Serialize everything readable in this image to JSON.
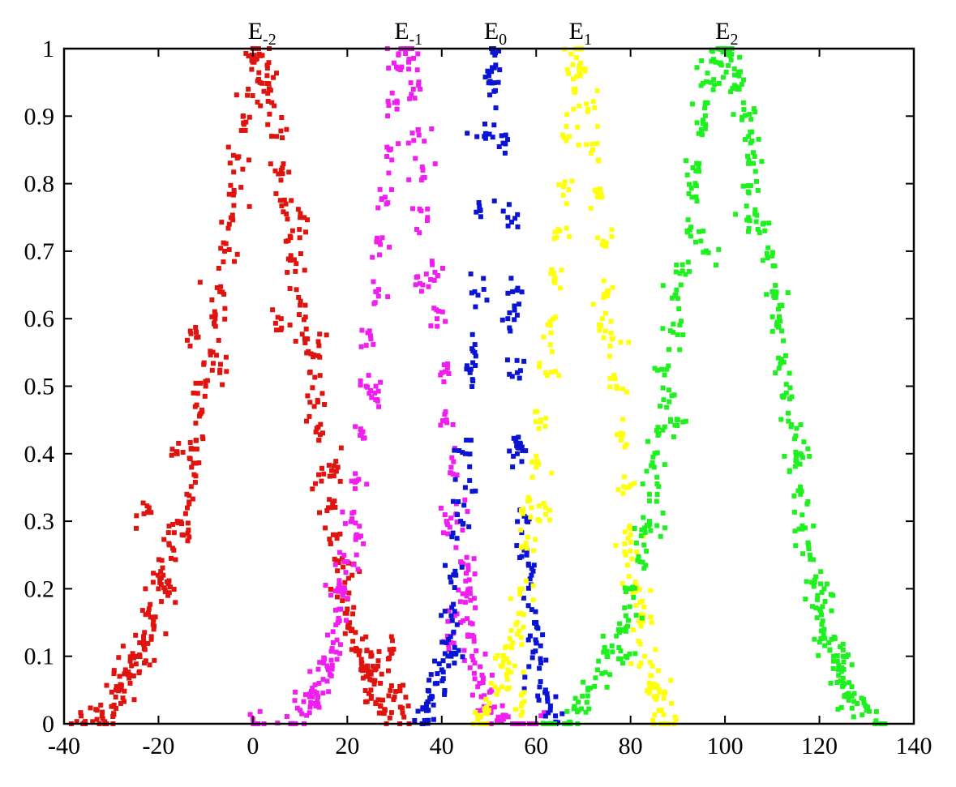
{
  "chart_data": {
    "type": "scatter",
    "title": "",
    "xlabel": "",
    "ylabel": "",
    "xlim": [
      -40,
      140
    ],
    "ylim": [
      0,
      1
    ],
    "x_ticks": [
      -40,
      -20,
      0,
      20,
      40,
      60,
      80,
      100,
      120,
      140
    ],
    "x_tick_labels": [
      "-40",
      "-20",
      "0",
      "20",
      "40",
      "60",
      "80",
      "100",
      "120",
      "140"
    ],
    "y_ticks": [
      0,
      0.1,
      0.2,
      0.3,
      0.4,
      0.5,
      0.6,
      0.7,
      0.8,
      0.9,
      1
    ],
    "y_tick_labels": [
      "0",
      "0.1",
      "0.2",
      "0.3",
      "0.4",
      "0.5",
      "0.6",
      "0.7",
      "0.8",
      "0.9",
      "1"
    ],
    "grid": false,
    "legend": "none",
    "series": [
      {
        "label_base": "E",
        "label_sub": "-2",
        "color": "#e0140f",
        "peak_x": 1,
        "peak_y": 1,
        "points": [
          [
            -36,
            0.0
          ],
          [
            -33,
            0.02
          ],
          [
            -31,
            0.0
          ],
          [
            -29,
            0.05
          ],
          [
            -28,
            0.03
          ],
          [
            -27,
            0.08
          ],
          [
            -26,
            0.06
          ],
          [
            -25,
            0.1
          ],
          [
            -24,
            0.12
          ],
          [
            -23,
            0.09
          ],
          [
            -22,
            0.17
          ],
          [
            -21,
            0.14
          ],
          [
            -20,
            0.2
          ],
          [
            -19,
            0.22
          ],
          [
            -18,
            0.19
          ],
          [
            -17,
            0.26
          ],
          [
            -16,
            0.3
          ],
          [
            -15,
            0.28
          ],
          [
            -14,
            0.34
          ],
          [
            -13,
            0.38
          ],
          [
            -12,
            0.42
          ],
          [
            -11,
            0.46
          ],
          [
            -10,
            0.5
          ],
          [
            -9,
            0.55
          ],
          [
            -8,
            0.6
          ],
          [
            -7,
            0.64
          ],
          [
            -6,
            0.7
          ],
          [
            -5,
            0.74
          ],
          [
            -4,
            0.79
          ],
          [
            -3,
            0.84
          ],
          [
            -2,
            0.89
          ],
          [
            -1,
            0.94
          ],
          [
            0,
            0.98
          ],
          [
            1,
            1.0
          ],
          [
            2,
            0.99
          ],
          [
            3,
            0.96
          ],
          [
            4,
            0.92
          ],
          [
            5,
            0.87
          ],
          [
            6,
            0.82
          ],
          [
            7,
            0.77
          ],
          [
            8,
            0.72
          ],
          [
            9,
            0.67
          ],
          [
            10,
            0.62
          ],
          [
            11,
            0.57
          ],
          [
            12,
            0.52
          ],
          [
            13,
            0.47
          ],
          [
            14,
            0.42
          ],
          [
            15,
            0.37
          ],
          [
            16,
            0.32
          ],
          [
            17,
            0.28
          ],
          [
            18,
            0.24
          ],
          [
            19,
            0.2
          ],
          [
            20,
            0.17
          ],
          [
            21,
            0.14
          ],
          [
            22,
            0.11
          ],
          [
            23,
            0.09
          ],
          [
            24,
            0.07
          ],
          [
            25,
            0.05
          ],
          [
            26,
            0.03
          ],
          [
            27,
            0.06
          ],
          [
            28,
            0.02
          ],
          [
            30,
            0.04
          ],
          [
            32,
            0.01
          ],
          [
            -22,
            0.32
          ],
          [
            -16,
            0.4
          ],
          [
            -12,
            0.58
          ],
          [
            -7,
            0.52
          ],
          [
            6,
            0.6
          ],
          [
            10,
            0.75
          ],
          [
            14,
            0.56
          ],
          [
            18,
            0.38
          ],
          [
            21,
            0.22
          ],
          [
            25,
            0.1
          ],
          [
            29,
            0.11
          ]
        ]
      },
      {
        "label_base": "E",
        "label_sub": "-1",
        "color": "#f01ff0",
        "peak_x": 32,
        "peak_y": 1,
        "points": [
          [
            1,
            0.0
          ],
          [
            8,
            0.0
          ],
          [
            10,
            0.02
          ],
          [
            12,
            0.04
          ],
          [
            13,
            0.03
          ],
          [
            14,
            0.06
          ],
          [
            15,
            0.09
          ],
          [
            16,
            0.08
          ],
          [
            17,
            0.12
          ],
          [
            18,
            0.15
          ],
          [
            19,
            0.19
          ],
          [
            20,
            0.24
          ],
          [
            21,
            0.3
          ],
          [
            22,
            0.36
          ],
          [
            23,
            0.43
          ],
          [
            24,
            0.5
          ],
          [
            25,
            0.57
          ],
          [
            26,
            0.64
          ],
          [
            27,
            0.71
          ],
          [
            28,
            0.78
          ],
          [
            29,
            0.85
          ],
          [
            30,
            0.92
          ],
          [
            31,
            0.97
          ],
          [
            32,
            1.0
          ],
          [
            33,
            0.98
          ],
          [
            34,
            0.94
          ],
          [
            35,
            0.88
          ],
          [
            36,
            0.82
          ],
          [
            37,
            0.75
          ],
          [
            38,
            0.68
          ],
          [
            39,
            0.6
          ],
          [
            40,
            0.52
          ],
          [
            41,
            0.45
          ],
          [
            42,
            0.38
          ],
          [
            43,
            0.31
          ],
          [
            44,
            0.24
          ],
          [
            45,
            0.18
          ],
          [
            46,
            0.13
          ],
          [
            47,
            0.09
          ],
          [
            48,
            0.06
          ],
          [
            49,
            0.04
          ],
          [
            50,
            0.02
          ],
          [
            52,
            0.01
          ],
          [
            55,
            0.0
          ],
          [
            60,
            0.0
          ],
          [
            18,
            0.2
          ],
          [
            22,
            0.28
          ],
          [
            26,
            0.48
          ],
          [
            36,
            0.65
          ],
          [
            41,
            0.3
          ],
          [
            44,
            0.15
          ],
          [
            46,
            0.2
          ],
          [
            42,
            0.12
          ]
        ]
      },
      {
        "label_base": "E",
        "label_sub": "0",
        "color": "#0a14d2",
        "peak_x": 51,
        "peak_y": 1,
        "points": [
          [
            36,
            0.0
          ],
          [
            37,
            0.02
          ],
          [
            38,
            0.04
          ],
          [
            39,
            0.06
          ],
          [
            40,
            0.08
          ],
          [
            41,
            0.12
          ],
          [
            42,
            0.16
          ],
          [
            43,
            0.22
          ],
          [
            44,
            0.3
          ],
          [
            45,
            0.4
          ],
          [
            46,
            0.52
          ],
          [
            47,
            0.64
          ],
          [
            48,
            0.76
          ],
          [
            49,
            0.87
          ],
          [
            50,
            0.96
          ],
          [
            51,
            1.0
          ],
          [
            52,
            0.95
          ],
          [
            53,
            0.86
          ],
          [
            54,
            0.75
          ],
          [
            55,
            0.64
          ],
          [
            56,
            0.52
          ],
          [
            57,
            0.41
          ],
          [
            58,
            0.3
          ],
          [
            59,
            0.22
          ],
          [
            60,
            0.15
          ],
          [
            61,
            0.09
          ],
          [
            62,
            0.05
          ],
          [
            63,
            0.02
          ],
          [
            64,
            0.0
          ],
          [
            45,
            0.35
          ],
          [
            47,
            0.55
          ],
          [
            54,
            0.6
          ],
          [
            56,
            0.4
          ],
          [
            58,
            0.25
          ],
          [
            60,
            0.12
          ],
          [
            42,
            0.1
          ]
        ]
      },
      {
        "label_base": "E",
        "label_sub": "1",
        "color": "#ffff0a",
        "peak_x": 69,
        "peak_y": 1,
        "points": [
          [
            48,
            0.0
          ],
          [
            50,
            0.02
          ],
          [
            52,
            0.05
          ],
          [
            54,
            0.08
          ],
          [
            55,
            0.12
          ],
          [
            56,
            0.15
          ],
          [
            57,
            0.2
          ],
          [
            58,
            0.26
          ],
          [
            59,
            0.32
          ],
          [
            60,
            0.38
          ],
          [
            61,
            0.45
          ],
          [
            62,
            0.52
          ],
          [
            63,
            0.59
          ],
          [
            64,
            0.66
          ],
          [
            65,
            0.73
          ],
          [
            66,
            0.8
          ],
          [
            67,
            0.87
          ],
          [
            68,
            0.94
          ],
          [
            69,
            1.0
          ],
          [
            70,
            0.97
          ],
          [
            71,
            0.91
          ],
          [
            72,
            0.85
          ],
          [
            73,
            0.78
          ],
          [
            74,
            0.71
          ],
          [
            75,
            0.64
          ],
          [
            76,
            0.57
          ],
          [
            77,
            0.5
          ],
          [
            78,
            0.42
          ],
          [
            79,
            0.35
          ],
          [
            80,
            0.28
          ],
          [
            81,
            0.21
          ],
          [
            82,
            0.15
          ],
          [
            83,
            0.1
          ],
          [
            84,
            0.06
          ],
          [
            85,
            0.04
          ],
          [
            86,
            0.02
          ],
          [
            88,
            0.0
          ],
          [
            53,
            0.1
          ],
          [
            57,
            0.03
          ],
          [
            62,
            0.32
          ],
          [
            74,
            0.6
          ],
          [
            79,
            0.25
          ],
          [
            82,
            0.18
          ],
          [
            86,
            0.05
          ]
        ]
      },
      {
        "label_base": "E",
        "label_sub": "2",
        "color": "#1ff01f",
        "peak_x": 100,
        "peak_y": 1,
        "points": [
          [
            63,
            0.0
          ],
          [
            67,
            0.0
          ],
          [
            69,
            0.02
          ],
          [
            71,
            0.05
          ],
          [
            73,
            0.08
          ],
          [
            75,
            0.1
          ],
          [
            77,
            0.13
          ],
          [
            79,
            0.16
          ],
          [
            80,
            0.2
          ],
          [
            82,
            0.24
          ],
          [
            83,
            0.29
          ],
          [
            84,
            0.34
          ],
          [
            85,
            0.38
          ],
          [
            86,
            0.43
          ],
          [
            87,
            0.48
          ],
          [
            88,
            0.53
          ],
          [
            89,
            0.58
          ],
          [
            90,
            0.63
          ],
          [
            91,
            0.68
          ],
          [
            92,
            0.73
          ],
          [
            93,
            0.78
          ],
          [
            94,
            0.83
          ],
          [
            95,
            0.88
          ],
          [
            96,
            0.92
          ],
          [
            97,
            0.95
          ],
          [
            98,
            0.98
          ],
          [
            99,
            1.0
          ],
          [
            100,
            1.0
          ],
          [
            101,
            0.99
          ],
          [
            102,
            0.97
          ],
          [
            103,
            0.94
          ],
          [
            104,
            0.91
          ],
          [
            105,
            0.87
          ],
          [
            106,
            0.83
          ],
          [
            107,
            0.79
          ],
          [
            108,
            0.74
          ],
          [
            109,
            0.69
          ],
          [
            110,
            0.64
          ],
          [
            111,
            0.59
          ],
          [
            112,
            0.54
          ],
          [
            113,
            0.49
          ],
          [
            114,
            0.44
          ],
          [
            115,
            0.39
          ],
          [
            116,
            0.34
          ],
          [
            117,
            0.29
          ],
          [
            118,
            0.25
          ],
          [
            119,
            0.21
          ],
          [
            120,
            0.17
          ],
          [
            121,
            0.14
          ],
          [
            122,
            0.12
          ],
          [
            123,
            0.1
          ],
          [
            124,
            0.08
          ],
          [
            125,
            0.06
          ],
          [
            126,
            0.04
          ],
          [
            128,
            0.03
          ],
          [
            130,
            0.02
          ],
          [
            133,
            0.0
          ],
          [
            79,
            0.1
          ],
          [
            84,
            0.3
          ],
          [
            90,
            0.45
          ],
          [
            96,
            0.7
          ],
          [
            105,
            0.75
          ],
          [
            112,
            0.62
          ],
          [
            116,
            0.4
          ],
          [
            121,
            0.2
          ],
          [
            125,
            0.1
          ]
        ]
      }
    ]
  }
}
